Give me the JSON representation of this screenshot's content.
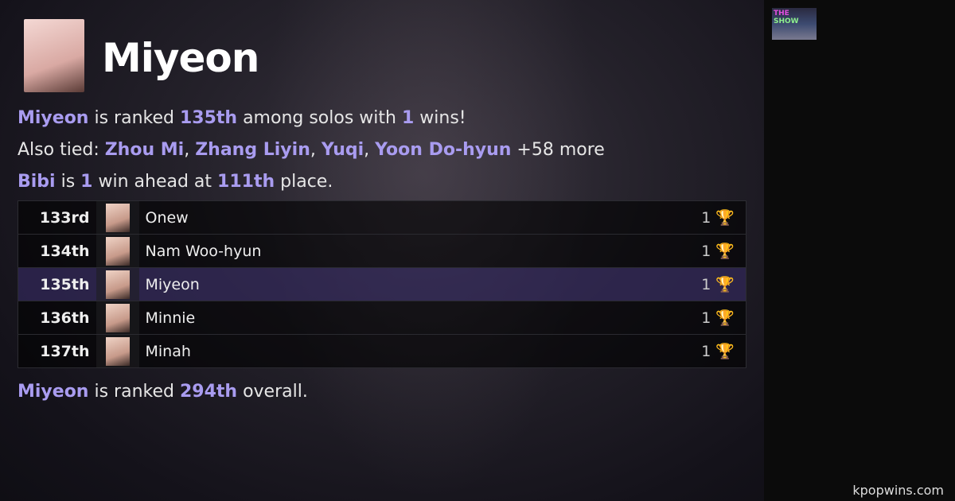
{
  "artist": {
    "name": "Miyeon"
  },
  "summary": {
    "name": "Miyeon",
    "t1": " is ranked ",
    "rank": "135th",
    "t2": " among solos with ",
    "wins": "1",
    "t3": " wins!"
  },
  "tied": {
    "label": "Also tied: ",
    "names": [
      "Zhou Mi",
      "Zhang Liyin",
      "Yuqi",
      "Yoon Do-hyun"
    ],
    "more": " +58 more"
  },
  "ahead": {
    "name": "Bibi",
    "t1": " is ",
    "wins": "1",
    "t2": " win ahead at ",
    "rank": "111th",
    "t3": " place."
  },
  "rows": [
    {
      "rank": "133rd",
      "name": "Onew",
      "wins": "1"
    },
    {
      "rank": "134th",
      "name": "Nam Woo-hyun",
      "wins": "1"
    },
    {
      "rank": "135th",
      "name": "Miyeon",
      "wins": "1"
    },
    {
      "rank": "136th",
      "name": "Minnie",
      "wins": "1"
    },
    {
      "rank": "137th",
      "name": "Minah",
      "wins": "1"
    }
  ],
  "overall": {
    "name": "Miyeon",
    "t1": " is ranked ",
    "rank": "294th",
    "t2": " overall."
  },
  "logo": {
    "line1": "THE",
    "line2": "SHOW"
  },
  "footer": "kpopwins.com",
  "colors": {
    "accent": "#a99cf0",
    "highlight_row": "#2a2350"
  },
  "icons": {
    "wins": "trophy-icon"
  }
}
